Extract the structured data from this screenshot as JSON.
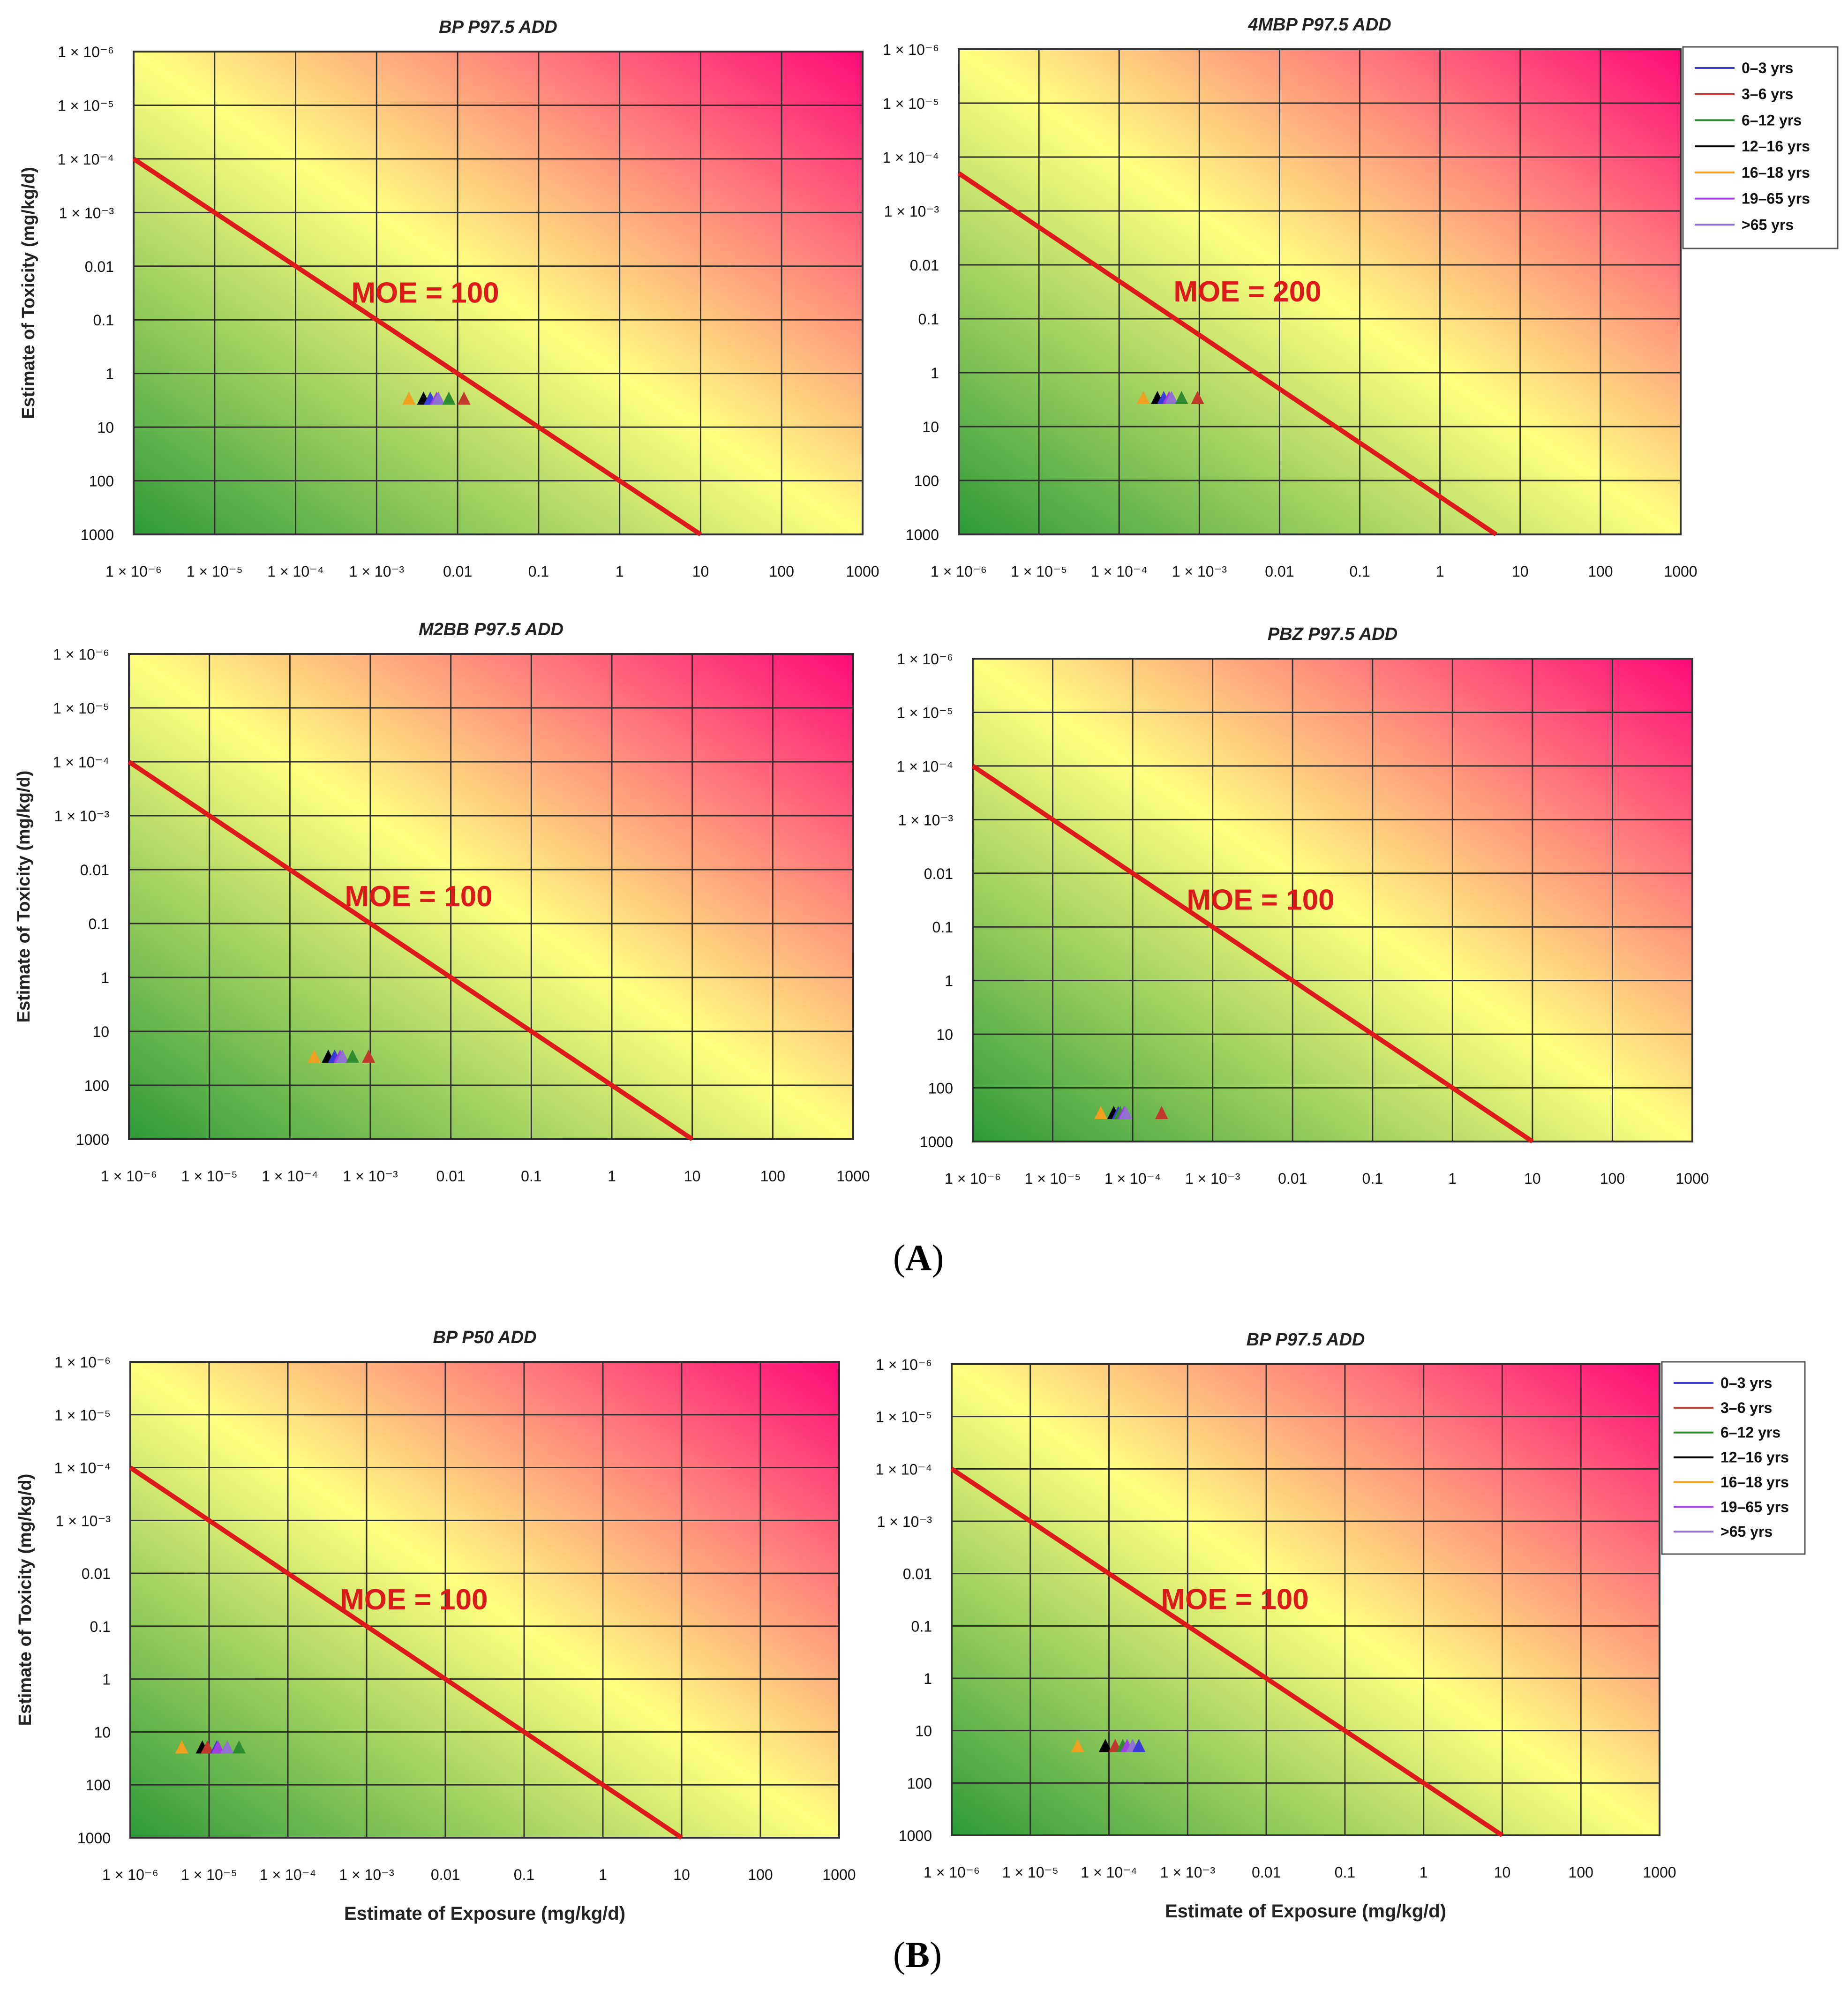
{
  "figure": {
    "panel_a_label": "A",
    "panel_b_label": "B"
  },
  "legend": {
    "entries": [
      {
        "label": "0–3 yrs",
        "color": "#3b3bd6"
      },
      {
        "label": "3–6 yrs",
        "color": "#c0392b"
      },
      {
        "label": "6–12 yrs",
        "color": "#2e8b2e"
      },
      {
        "label": "12–16 yrs",
        "color": "#000000"
      },
      {
        "label": "16–18 yrs",
        "color": "#f0a020"
      },
      {
        "label": "19–65 yrs",
        "color": "#a040e0"
      },
      {
        "label": ">65 yrs",
        "color": "#9070d0"
      }
    ]
  },
  "colors": {
    "safe": "#2e9a3a",
    "mid": "#ffff80",
    "danger": "#ff0a78",
    "moe_line": "#dd1a1a",
    "grid": "#303030"
  },
  "chart_data": [
    {
      "type": "scatter",
      "title": "BP P97.5 ADD",
      "xlabel": "",
      "ylabel": "Estimate of Toxicity (mg/kg/d)",
      "xlim": [
        1e-06,
        1000
      ],
      "ylim": [
        1000,
        1e-06
      ],
      "x_tick_labels": [
        "1 × 10⁻⁶",
        "1 × 10⁻⁵",
        "1 × 10⁻⁴",
        "1 × 10⁻³",
        "0.01",
        "0.1",
        "1",
        "10",
        "100",
        "1000"
      ],
      "y_tick_labels": [
        "1 × 10⁻⁶",
        "1 × 10⁻⁵",
        "1 × 10⁻⁴",
        "1 × 10⁻³",
        "0.01",
        "0.1",
        "1",
        "10",
        "100",
        "1000"
      ],
      "moe_label": "MOE = 100",
      "moe": 100,
      "legend": false,
      "points": [
        {
          "group": "16–18 yrs",
          "x": 0.0025,
          "y": 3
        },
        {
          "group": "12–16 yrs",
          "x": 0.0038,
          "y": 3
        },
        {
          "group": "0–3 yrs",
          "x": 0.0046,
          "y": 3
        },
        {
          "group": "19–65 yrs",
          "x": 0.0055,
          "y": 3
        },
        {
          "group": ">65 yrs",
          "x": 0.0058,
          "y": 3
        },
        {
          "group": "6–12 yrs",
          "x": 0.0078,
          "y": 3
        },
        {
          "group": "3–6 yrs",
          "x": 0.012,
          "y": 3
        }
      ]
    },
    {
      "type": "scatter",
      "title": "4MBP P97.5 ADD",
      "xlabel": "",
      "ylabel": "",
      "xlim": [
        1e-06,
        1000
      ],
      "ylim": [
        1000,
        1e-06
      ],
      "x_tick_labels": [
        "1 × 10⁻⁶",
        "1 × 10⁻⁵",
        "1 × 10⁻⁴",
        "1 × 10⁻³",
        "0.01",
        "0.1",
        "1",
        "10",
        "100",
        "1000"
      ],
      "y_tick_labels": [
        "1 × 10⁻⁶",
        "1 × 10⁻⁵",
        "1 × 10⁻⁴",
        "1 × 10⁻³",
        "0.01",
        "0.1",
        "1",
        "10",
        "100",
        "1000"
      ],
      "moe_label": "MOE = 200",
      "moe": 200,
      "legend": true,
      "points": [
        {
          "group": "16–18 yrs",
          "x": 0.0002,
          "y": 3
        },
        {
          "group": "12–16 yrs",
          "x": 0.0003,
          "y": 3
        },
        {
          "group": "0–3 yrs",
          "x": 0.00036,
          "y": 3
        },
        {
          "group": "19–65 yrs",
          "x": 0.00042,
          "y": 3
        },
        {
          "group": ">65 yrs",
          "x": 0.00045,
          "y": 3
        },
        {
          "group": "6–12 yrs",
          "x": 0.0006,
          "y": 3
        },
        {
          "group": "3–6 yrs",
          "x": 0.00095,
          "y": 3
        }
      ]
    },
    {
      "type": "scatter",
      "title": "M2BB P97.5 ADD",
      "xlabel": "",
      "ylabel": "Estimate of Toxicity (mg/kg/d)",
      "xlim": [
        1e-06,
        1000
      ],
      "ylim": [
        1000,
        1e-06
      ],
      "x_tick_labels": [
        "1 × 10⁻⁶",
        "1 × 10⁻⁵",
        "1 × 10⁻⁴",
        "1 × 10⁻³",
        "0.01",
        "0.1",
        "1",
        "10",
        "100",
        "1000"
      ],
      "y_tick_labels": [
        "1 × 10⁻⁶",
        "1 × 10⁻⁵",
        "1 × 10⁻⁴",
        "1 × 10⁻³",
        "0.01",
        "0.1",
        "1",
        "10",
        "100",
        "1000"
      ],
      "moe_label": "MOE = 100",
      "moe": 100,
      "legend": false,
      "points": [
        {
          "group": "16–18 yrs",
          "x": 0.0002,
          "y": 30
        },
        {
          "group": "12–16 yrs",
          "x": 0.0003,
          "y": 30
        },
        {
          "group": "0–3 yrs",
          "x": 0.00036,
          "y": 30
        },
        {
          "group": "19–65 yrs",
          "x": 0.00042,
          "y": 30
        },
        {
          "group": ">65 yrs",
          "x": 0.00045,
          "y": 30
        },
        {
          "group": "6–12 yrs",
          "x": 0.0006,
          "y": 30
        },
        {
          "group": "3–6 yrs",
          "x": 0.00095,
          "y": 30
        }
      ]
    },
    {
      "type": "scatter",
      "title": "PBZ P97.5 ADD",
      "xlabel": "",
      "ylabel": "",
      "xlim": [
        1e-06,
        1000
      ],
      "ylim": [
        1000,
        1e-06
      ],
      "x_tick_labels": [
        "1 × 10⁻⁶",
        "1 × 10⁻⁵",
        "1 × 10⁻⁴",
        "1 × 10⁻³",
        "0.01",
        "0.1",
        "1",
        "10",
        "100",
        "1000"
      ],
      "y_tick_labels": [
        "1 × 10⁻⁶",
        "1 × 10⁻⁵",
        "1 × 10⁻⁴",
        "1 × 10⁻³",
        "0.01",
        "0.1",
        "1",
        "10",
        "100",
        "1000"
      ],
      "moe_label": "MOE = 100",
      "moe": 100,
      "legend": false,
      "points": [
        {
          "group": "16–18 yrs",
          "x": 4e-05,
          "y": 300
        },
        {
          "group": "12–16 yrs",
          "x": 5.8e-05,
          "y": 300
        },
        {
          "group": "0–3 yrs",
          "x": 6.6e-05,
          "y": 300
        },
        {
          "group": "6–12 yrs",
          "x": 7e-05,
          "y": 300
        },
        {
          "group": "19–65 yrs",
          "x": 7.8e-05,
          "y": 300
        },
        {
          "group": ">65 yrs",
          "x": 8.2e-05,
          "y": 300
        },
        {
          "group": "3–6 yrs",
          "x": 0.00023,
          "y": 300
        }
      ]
    },
    {
      "type": "scatter",
      "title": "BP P50 ADD",
      "xlabel": "Estimate of Exposure (mg/kg/d)",
      "ylabel": "Estimate of Toxicity (mg/kg/d)",
      "xlim": [
        1e-06,
        1000
      ],
      "ylim": [
        1000,
        1e-06
      ],
      "x_tick_labels": [
        "1 × 10⁻⁶",
        "1 × 10⁻⁵",
        "1 × 10⁻⁴",
        "1 × 10⁻³",
        "0.01",
        "0.1",
        "1",
        "10",
        "100",
        "1000"
      ],
      "y_tick_labels": [
        "1 × 10⁻⁶",
        "1 × 10⁻⁵",
        "1 × 10⁻⁴",
        "1 × 10⁻³",
        "0.01",
        "0.1",
        "1",
        "10",
        "100",
        "1000"
      ],
      "moe_label": "MOE = 100",
      "moe": 100,
      "legend": false,
      "points": [
        {
          "group": "16–18 yrs",
          "x": 4.5e-06,
          "y": 20
        },
        {
          "group": "12–16 yrs",
          "x": 8.2e-06,
          "y": 20
        },
        {
          "group": "3–6 yrs",
          "x": 9.5e-06,
          "y": 20
        },
        {
          "group": "0–3 yrs",
          "x": 1.25e-05,
          "y": 20
        },
        {
          "group": "19–65 yrs",
          "x": 1.3e-05,
          "y": 20
        },
        {
          "group": ">65 yrs",
          "x": 1.7e-05,
          "y": 20
        },
        {
          "group": "6–12 yrs",
          "x": 2.4e-05,
          "y": 20
        }
      ]
    },
    {
      "type": "scatter",
      "title": "BP P97.5 ADD",
      "xlabel": "Estimate of Exposure (mg/kg/d)",
      "ylabel": "",
      "xlim": [
        1e-06,
        1000
      ],
      "ylim": [
        1000,
        1e-06
      ],
      "x_tick_labels": [
        "1 × 10⁻⁶",
        "1 × 10⁻⁵",
        "1 × 10⁻⁴",
        "1 × 10⁻³",
        "0.01",
        "0.1",
        "1",
        "10",
        "100",
        "1000"
      ],
      "y_tick_labels": [
        "1 × 10⁻⁶",
        "1 × 10⁻⁵",
        "1 × 10⁻⁴",
        "1 × 10⁻³",
        "0.01",
        "0.1",
        "1",
        "10",
        "100",
        "1000"
      ],
      "moe_label": "MOE = 100",
      "moe": 100,
      "legend": true,
      "points": [
        {
          "group": "16–18 yrs",
          "x": 4e-05,
          "y": 20
        },
        {
          "group": "12–16 yrs",
          "x": 9e-05,
          "y": 20
        },
        {
          "group": "3–6 yrs",
          "x": 0.00012,
          "y": 20
        },
        {
          "group": "6–12 yrs",
          "x": 0.00015,
          "y": 20
        },
        {
          "group": "19–65 yrs",
          "x": 0.00017,
          "y": 20
        },
        {
          "group": ">65 yrs",
          "x": 0.0002,
          "y": 20
        },
        {
          "group": "0–3 yrs",
          "x": 0.00024,
          "y": 20
        }
      ]
    }
  ]
}
